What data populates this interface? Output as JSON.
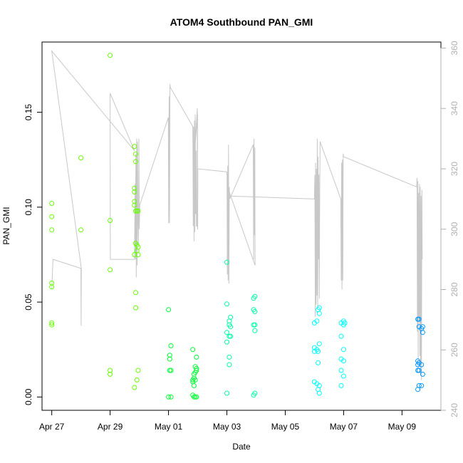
{
  "chart_data": {
    "type": "scatter",
    "title": "ATOM4 Southbound PAN_GMI",
    "xlabel": "Date",
    "ylabel": "PAN_GMI",
    "xlim": [
      "2016-04-26T16:00",
      "2016-05-10T08:00"
    ],
    "ylim": [
      -0.007,
      0.187
    ],
    "y2lim": [
      240,
      362
    ],
    "x_ticks": [
      {
        "date": "2016-04-27",
        "label": "Apr 27"
      },
      {
        "date": "2016-04-29",
        "label": "Apr 29"
      },
      {
        "date": "2016-05-01",
        "label": "May 01"
      },
      {
        "date": "2016-05-03",
        "label": "May 03"
      },
      {
        "date": "2016-05-05",
        "label": "May 05"
      },
      {
        "date": "2016-05-07",
        "label": "May 07"
      },
      {
        "date": "2016-05-09",
        "label": "May 09"
      }
    ],
    "y_ticks": [
      "0.00",
      "0.05",
      "0.10",
      "0.15"
    ],
    "y2_ticks": [
      "240",
      "260",
      "280",
      "300",
      "320",
      "340",
      "360"
    ],
    "series": [
      {
        "color": "#66ff00",
        "points": [
          [
            "2016-04-27T00:00",
            0.102
          ],
          [
            "2016-04-27T00:00",
            0.095
          ],
          [
            "2016-04-27T00:00",
            0.088
          ],
          [
            "2016-04-27T00:00",
            0.06
          ],
          [
            "2016-04-27T00:00",
            0.058
          ],
          [
            "2016-04-27T00:00",
            0.039
          ],
          [
            "2016-04-27T00:00",
            0.038
          ],
          [
            "2016-04-28T00:00",
            0.126
          ],
          [
            "2016-04-28T00:00",
            0.088
          ],
          [
            "2016-04-29T00:00",
            0.18
          ],
          [
            "2016-04-29T00:00",
            0.093
          ],
          [
            "2016-04-29T00:00",
            0.067
          ],
          [
            "2016-04-29T00:00",
            0.014
          ],
          [
            "2016-04-29T00:00",
            0.012
          ],
          [
            "2016-04-29T20:00",
            0.132
          ],
          [
            "2016-04-29T20:00",
            0.11
          ],
          [
            "2016-04-29T20:00",
            0.108
          ],
          [
            "2016-04-29T20:00",
            0.103
          ],
          [
            "2016-04-29T20:00",
            0.101
          ],
          [
            "2016-04-29T20:00",
            0.075
          ],
          [
            "2016-04-29T20:00",
            0.005
          ],
          [
            "2016-04-29T21:00",
            0.128
          ],
          [
            "2016-04-29T21:00",
            0.124
          ],
          [
            "2016-04-29T21:00",
            0.098
          ],
          [
            "2016-04-29T21:00",
            0.081
          ],
          [
            "2016-04-29T21:00",
            0.055
          ],
          [
            "2016-04-29T21:00",
            0.047
          ],
          [
            "2016-04-29T22:00",
            0.098
          ],
          [
            "2016-04-29T22:00",
            0.08
          ],
          [
            "2016-04-29T22:00",
            0.077
          ],
          [
            "2016-04-29T22:00",
            0.009
          ],
          [
            "2016-04-29T23:00",
            0.098
          ],
          [
            "2016-04-29T23:00",
            0.079
          ],
          [
            "2016-04-29T23:00",
            0.075
          ],
          [
            "2016-04-29T23:00",
            0.014
          ]
        ]
      },
      {
        "color": "#00ff33",
        "points": [
          [
            "2016-05-01T00:00",
            0.046
          ],
          [
            "2016-05-01T00:00",
            0.0
          ],
          [
            "2016-05-01T01:00",
            0.022
          ],
          [
            "2016-05-01T01:00",
            0.02
          ],
          [
            "2016-05-01T01:00",
            0.014
          ],
          [
            "2016-05-01T02:00",
            0.027
          ],
          [
            "2016-05-01T02:00",
            0.014
          ],
          [
            "2016-05-01T02:00",
            0.0
          ],
          [
            "2016-05-01T20:00",
            0.025
          ],
          [
            "2016-05-01T20:00",
            0.009
          ],
          [
            "2016-05-01T20:00",
            0.008
          ],
          [
            "2016-05-01T20:00",
            0.001
          ],
          [
            "2016-05-01T21:00",
            0.012
          ],
          [
            "2016-05-01T21:00",
            0.01
          ],
          [
            "2016-05-01T21:00",
            0.006
          ],
          [
            "2016-05-01T21:00",
            0.0
          ],
          [
            "2016-05-01T22:00",
            0.016
          ],
          [
            "2016-05-01T22:00",
            0.013
          ],
          [
            "2016-05-01T22:00",
            0.009
          ],
          [
            "2016-05-01T22:00",
            0.0
          ],
          [
            "2016-05-01T23:00",
            0.021
          ],
          [
            "2016-05-01T23:00",
            0.015
          ],
          [
            "2016-05-01T23:00",
            0.014
          ],
          [
            "2016-05-01T23:00",
            0.0
          ]
        ]
      },
      {
        "color": "#00ffaa",
        "points": [
          [
            "2016-05-03T00:00",
            0.071
          ],
          [
            "2016-05-03T00:00",
            0.049
          ],
          [
            "2016-05-03T00:00",
            0.034
          ],
          [
            "2016-05-03T00:00",
            0.029
          ],
          [
            "2016-05-03T00:00",
            0.002
          ],
          [
            "2016-05-03T02:00",
            0.04
          ],
          [
            "2016-05-03T02:00",
            0.038
          ],
          [
            "2016-05-03T02:00",
            0.032
          ],
          [
            "2016-05-03T02:00",
            0.021
          ],
          [
            "2016-05-03T02:00",
            0.017
          ],
          [
            "2016-05-03T03:00",
            0.042
          ],
          [
            "2016-05-03T03:00",
            0.037
          ],
          [
            "2016-05-03T03:00",
            0.032
          ],
          [
            "2016-05-03T22:00",
            0.052
          ],
          [
            "2016-05-03T22:00",
            0.046
          ],
          [
            "2016-05-03T22:00",
            0.038
          ],
          [
            "2016-05-03T22:00",
            0.001
          ],
          [
            "2016-05-03T23:00",
            0.053
          ],
          [
            "2016-05-03T23:00",
            0.045
          ],
          [
            "2016-05-03T23:00",
            0.038
          ],
          [
            "2016-05-03T23:00",
            0.035
          ],
          [
            "2016-05-03T23:00",
            0.002
          ]
        ]
      },
      {
        "color": "#00ffff",
        "points": [
          [
            "2016-05-06T00:00",
            0.039
          ],
          [
            "2016-05-06T00:00",
            0.026
          ],
          [
            "2016-05-06T00:00",
            0.024
          ],
          [
            "2016-05-06T00:00",
            0.008
          ],
          [
            "2016-05-06T02:00",
            0.04
          ],
          [
            "2016-05-06T02:00",
            0.025
          ],
          [
            "2016-05-06T02:00",
            0.007
          ],
          [
            "2016-05-06T03:00",
            0.046
          ],
          [
            "2016-05-06T03:00",
            0.024
          ],
          [
            "2016-05-06T03:00",
            0.018
          ],
          [
            "2016-05-06T03:00",
            0.004
          ],
          [
            "2016-05-06T04:00",
            0.047
          ],
          [
            "2016-05-06T04:00",
            0.044
          ],
          [
            "2016-05-06T04:00",
            0.028
          ],
          [
            "2016-05-06T04:00",
            0.006
          ],
          [
            "2016-05-06T04:00",
            0.002
          ],
          [
            "2016-05-06T22:00",
            0.039
          ],
          [
            "2016-05-06T22:00",
            0.032
          ],
          [
            "2016-05-06T22:00",
            0.02
          ],
          [
            "2016-05-06T22:00",
            0.014
          ],
          [
            "2016-05-06T22:00",
            0.006
          ],
          [
            "2016-05-07T00:00",
            0.04
          ],
          [
            "2016-05-07T00:00",
            0.038
          ],
          [
            "2016-05-07T00:00",
            0.025
          ],
          [
            "2016-05-07T00:00",
            0.019
          ],
          [
            "2016-05-07T00:00",
            0.011
          ],
          [
            "2016-05-07T01:00",
            0.039
          ]
        ]
      },
      {
        "color": "#0099ff",
        "points": [
          [
            "2016-05-09T13:00",
            0.041
          ],
          [
            "2016-05-09T13:00",
            0.019
          ],
          [
            "2016-05-09T13:00",
            0.017
          ],
          [
            "2016-05-09T13:00",
            0.014
          ],
          [
            "2016-05-09T13:00",
            0.004
          ],
          [
            "2016-05-09T14:00",
            0.041
          ],
          [
            "2016-05-09T14:00",
            0.037
          ],
          [
            "2016-05-09T14:00",
            0.018
          ],
          [
            "2016-05-09T14:00",
            0.014
          ],
          [
            "2016-05-09T14:00",
            0.006
          ],
          [
            "2016-05-09T16:00",
            0.036
          ],
          [
            "2016-05-09T16:00",
            0.017
          ],
          [
            "2016-05-09T16:00",
            0.006
          ],
          [
            "2016-05-09T17:00",
            0.037
          ],
          [
            "2016-05-09T17:00",
            0.034
          ],
          [
            "2016-05-09T17:00",
            0.012
          ]
        ]
      }
    ],
    "line_series": {
      "color": "#c8c8c8",
      "axis": "right",
      "points": [
        [
          "2016-04-27T00:00",
          280
        ],
        [
          "2016-04-27T00:30",
          285
        ],
        [
          "2016-04-27T01:00",
          290
        ],
        [
          "2016-04-28T00:00",
          287
        ],
        [
          "2016-04-28T00:10",
          268
        ],
        [
          "2016-04-28T00:20",
          287
        ],
        [
          "2016-04-27T00:00",
          359
        ],
        [
          "2016-04-29T20:00",
          326
        ],
        [
          "2016-04-29T00:00",
          345
        ],
        [
          "2016-04-29T00:10",
          290
        ],
        [
          "2016-04-29T20:00",
          290
        ],
        [
          "2016-04-29T20:30",
          315
        ],
        [
          "2016-04-29T20:50",
          290
        ],
        [
          "2016-04-29T21:10",
          325
        ],
        [
          "2016-04-29T21:30",
          284
        ],
        [
          "2016-04-29T21:50",
          330
        ],
        [
          "2016-04-29T22:10",
          288
        ],
        [
          "2016-04-29T22:30",
          329
        ],
        [
          "2016-04-29T22:50",
          303
        ],
        [
          "2016-04-29T23:20",
          295
        ],
        [
          "2016-04-29T23:40",
          330
        ],
        [
          "2016-04-30T00:00",
          300
        ],
        [
          "2016-04-30T00:20",
          308
        ],
        [
          "2016-04-30T23:50",
          337
        ],
        [
          "2016-05-01T00:10",
          302
        ],
        [
          "2016-05-01T00:30",
          344
        ],
        [
          "2016-05-01T00:50",
          302
        ],
        [
          "2016-05-01T01:10",
          348
        ],
        [
          "2016-05-01T01:30",
          347
        ],
        [
          "2016-05-01T20:00",
          334
        ],
        [
          "2016-05-01T20:20",
          301
        ],
        [
          "2016-05-01T20:40",
          334
        ],
        [
          "2016-05-01T21:00",
          296
        ],
        [
          "2016-05-01T21:20",
          336
        ],
        [
          "2016-05-01T21:40",
          299
        ],
        [
          "2016-05-01T22:00",
          338
        ],
        [
          "2016-05-01T22:20",
          305
        ],
        [
          "2016-05-01T22:40",
          326
        ],
        [
          "2016-05-01T23:00",
          301
        ],
        [
          "2016-05-01T23:30",
          301
        ],
        [
          "2016-05-01T23:40",
          340
        ],
        [
          "2016-05-01T22:00",
          328
        ],
        [
          "2016-05-01T23:50",
          338
        ],
        [
          "2016-05-01T23:55",
          300
        ],
        [
          "2016-05-02T00:00",
          300
        ],
        [
          "2016-05-02T00:10",
          320
        ],
        [
          "2016-05-02T23:50",
          319
        ],
        [
          "2016-05-03T00:05",
          318
        ],
        [
          "2016-05-03T00:20",
          285
        ],
        [
          "2016-05-03T00:40",
          321
        ],
        [
          "2016-05-03T01:00",
          283
        ],
        [
          "2016-05-03T01:20",
          328
        ],
        [
          "2016-05-03T01:40",
          282
        ],
        [
          "2016-05-03T02:00",
          314
        ],
        [
          "2016-05-03T02:20",
          310
        ],
        [
          "2016-05-03T21:40",
          328
        ],
        [
          "2016-05-03T22:00",
          290
        ],
        [
          "2016-05-03T22:20",
          330
        ],
        [
          "2016-05-03T22:40",
          298
        ],
        [
          "2016-05-03T23:00",
          327
        ],
        [
          "2016-05-03T23:10",
          288
        ],
        [
          "2016-05-03T00:30",
          314
        ],
        [
          "2016-05-03T00:20",
          311
        ],
        [
          "2016-05-06T00:00",
          310
        ],
        [
          "2016-05-06T00:20",
          318
        ],
        [
          "2016-05-06T00:40",
          271
        ],
        [
          "2016-05-06T01:00",
          322
        ],
        [
          "2016-05-06T01:20",
          275
        ],
        [
          "2016-05-06T01:40",
          320
        ],
        [
          "2016-05-06T02:00",
          278
        ],
        [
          "2016-05-06T02:20",
          330
        ],
        [
          "2016-05-06T02:40",
          274
        ],
        [
          "2016-05-06T03:00",
          324
        ],
        [
          "2016-05-06T03:20",
          290
        ],
        [
          "2016-05-06T03:40",
          318
        ],
        [
          "2016-05-06T04:00",
          277
        ],
        [
          "2016-05-06T04:20",
          310
        ],
        [
          "2016-05-06T04:40",
          329
        ],
        [
          "2016-05-06T21:40",
          310
        ],
        [
          "2016-05-06T22:00",
          283
        ],
        [
          "2016-05-06T22:20",
          322
        ],
        [
          "2016-05-06T22:40",
          280
        ],
        [
          "2016-05-06T23:00",
          323
        ],
        [
          "2016-05-06T23:20",
          283
        ],
        [
          "2016-05-06T23:40",
          325
        ],
        [
          "2016-05-07T00:00",
          324
        ],
        [
          "2016-05-09T12:00",
          314
        ],
        [
          "2016-05-09T12:20",
          317
        ],
        [
          "2016-05-09T12:40",
          266
        ],
        [
          "2016-05-09T13:00",
          316
        ],
        [
          "2016-05-09T13:20",
          254
        ],
        [
          "2016-05-09T13:40",
          312
        ],
        [
          "2016-05-09T14:00",
          270
        ],
        [
          "2016-05-09T14:20",
          315
        ],
        [
          "2016-05-09T14:40",
          258
        ],
        [
          "2016-05-09T15:00",
          314
        ],
        [
          "2016-05-09T15:20",
          252
        ],
        [
          "2016-05-09T15:40",
          311
        ],
        [
          "2016-05-09T16:00",
          250
        ],
        [
          "2016-05-09T16:20",
          313
        ],
        [
          "2016-05-09T16:40",
          290
        ]
      ]
    },
    "grid": false,
    "box": true
  }
}
